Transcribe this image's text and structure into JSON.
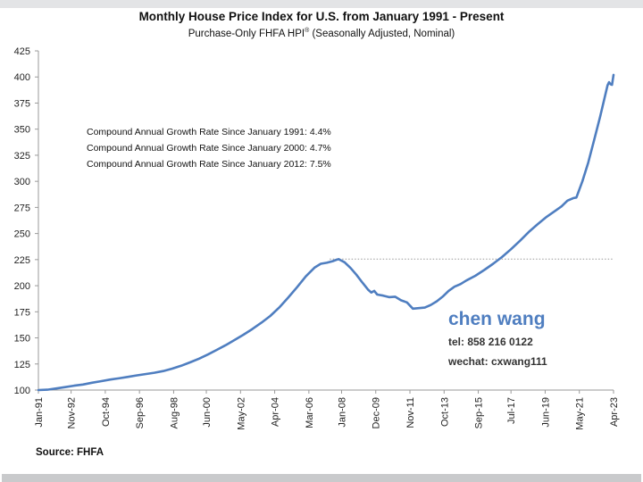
{
  "header": {
    "title": "Monthly House Price Index for U.S. from January 1991 - Present",
    "subtitle_main": "Purchase-Only FHFA HPI",
    "subtitle_sup": "®",
    "subtitle_tail": " (Seasonally Adjusted, Nominal)"
  },
  "footer": {
    "source": "Source: FHFA"
  },
  "watermark": {
    "name": "chen wang",
    "tel": "tel: 858 216 0122",
    "wechat": "wechat: cxwang111",
    "color": "#4f7ec0"
  },
  "colors": {
    "series": "#4f7ec0",
    "reference_line": "#9a9a9a",
    "axis": "#9a9a9a"
  },
  "chart_data": {
    "type": "line",
    "title": "Monthly House Price Index for U.S. from January 1991 - Present",
    "subtitle": "Purchase-Only FHFA HPI® (Seasonally Adjusted, Nominal)",
    "xlabel": "",
    "ylabel": "",
    "ylim": [
      100,
      425
    ],
    "yticks": [
      100,
      125,
      150,
      175,
      200,
      225,
      250,
      275,
      300,
      325,
      350,
      375,
      400,
      425
    ],
    "x_range_months": [
      0,
      387
    ],
    "xtick_labels": [
      "Jan-91",
      "Nov-92",
      "Oct-94",
      "Sep-96",
      "Aug-98",
      "Jun-00",
      "May-02",
      "Apr-04",
      "Mar-06",
      "Jan-08",
      "Dec-09",
      "Nov-11",
      "Oct-13",
      "Sep-15",
      "Jul-17",
      "Jun-19",
      "May-21",
      "Apr-23"
    ],
    "xtick_months": [
      0,
      22,
      45,
      68,
      91,
      113,
      136,
      159,
      182,
      204,
      227,
      250,
      273,
      296,
      318,
      341,
      364,
      387
    ],
    "grid": false,
    "legend": "none",
    "annotations": [
      "Compound Annual Growth Rate Since January 1991:  4.4%",
      "Compound Annual Growth Rate Since January 2000:  4.7%",
      "Compound Annual Growth Rate Since January 2012:  7.5%"
    ],
    "reference_line": {
      "value": 225.5,
      "from_month": 196,
      "to_month": 387,
      "style": "dotted",
      "description": "2007 peak level"
    },
    "series": [
      {
        "name": "Purchase-Only FHFA HPI (SA, Nominal)",
        "points": [
          [
            0,
            100.0
          ],
          [
            6,
            100.3
          ],
          [
            12,
            101.5
          ],
          [
            18,
            102.8
          ],
          [
            24,
            104.2
          ],
          [
            30,
            105.3
          ],
          [
            36,
            107.0
          ],
          [
            42,
            108.5
          ],
          [
            48,
            110.0
          ],
          [
            54,
            111.2
          ],
          [
            60,
            112.6
          ],
          [
            66,
            114.0
          ],
          [
            72,
            115.3
          ],
          [
            78,
            116.6
          ],
          [
            84,
            118.2
          ],
          [
            90,
            120.5
          ],
          [
            96,
            123.3
          ],
          [
            102,
            126.5
          ],
          [
            108,
            130.0
          ],
          [
            114,
            134.0
          ],
          [
            120,
            138.5
          ],
          [
            126,
            143.0
          ],
          [
            132,
            148.0
          ],
          [
            138,
            153.0
          ],
          [
            144,
            158.5
          ],
          [
            150,
            164.5
          ],
          [
            156,
            171.0
          ],
          [
            162,
            179.0
          ],
          [
            168,
            188.5
          ],
          [
            174,
            198.5
          ],
          [
            180,
            209.0
          ],
          [
            186,
            217.5
          ],
          [
            190,
            221.0
          ],
          [
            194,
            222.0
          ],
          [
            198,
            223.5
          ],
          [
            200,
            224.5
          ],
          [
            202,
            225.5
          ],
          [
            206,
            222.5
          ],
          [
            210,
            217.0
          ],
          [
            214,
            210.5
          ],
          [
            218,
            203.0
          ],
          [
            222,
            196.0
          ],
          [
            224,
            193.5
          ],
          [
            226,
            195.0
          ],
          [
            228,
            191.5
          ],
          [
            232,
            190.5
          ],
          [
            236,
            189.0
          ],
          [
            240,
            189.5
          ],
          [
            244,
            186.0
          ],
          [
            248,
            184.0
          ],
          [
            250,
            181.0
          ],
          [
            252,
            178.0
          ],
          [
            256,
            178.5
          ],
          [
            260,
            179.0
          ],
          [
            264,
            181.5
          ],
          [
            268,
            185.0
          ],
          [
            272,
            189.5
          ],
          [
            276,
            195.0
          ],
          [
            280,
            199.0
          ],
          [
            284,
            201.5
          ],
          [
            288,
            205.0
          ],
          [
            294,
            209.5
          ],
          [
            300,
            215.0
          ],
          [
            306,
            221.0
          ],
          [
            312,
            227.5
          ],
          [
            318,
            235.0
          ],
          [
            324,
            243.0
          ],
          [
            330,
            251.5
          ],
          [
            336,
            259.0
          ],
          [
            342,
            266.0
          ],
          [
            348,
            272.0
          ],
          [
            352,
            276.0
          ],
          [
            356,
            281.5
          ],
          [
            360,
            284.0
          ],
          [
            362,
            284.5
          ],
          [
            366,
            300.0
          ],
          [
            370,
            318.0
          ],
          [
            374,
            340.0
          ],
          [
            378,
            362.0
          ],
          [
            381,
            380.0
          ],
          [
            383,
            392.0
          ],
          [
            384,
            395.0
          ],
          [
            385,
            393.0
          ],
          [
            386,
            392.5
          ],
          [
            387,
            402.0
          ]
        ]
      }
    ]
  }
}
